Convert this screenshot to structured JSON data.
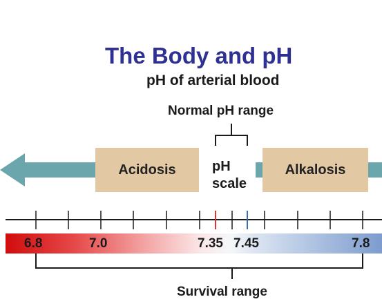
{
  "title": "The Body and pH",
  "subtitle": "pH of arterial blood",
  "normal_range": {
    "label": "Normal pH range",
    "low": "7.35",
    "high": "7.45"
  },
  "regions": {
    "acidosis": "Acidosis",
    "alkalosis": "Alkalosis"
  },
  "ph_scale": {
    "line1": "pH",
    "line2": "scale"
  },
  "scale": {
    "labels": [
      "6.8",
      "7.0",
      "7.35",
      "7.45",
      "7.8"
    ]
  },
  "survival_range": {
    "label": "Survival range"
  },
  "colors": {
    "title": "#2e3192",
    "arrow": "#6aa6ac",
    "box": "#e2c9a4",
    "acid_end": "#d10c0c",
    "alkaline_end": "#7d9ccd",
    "normal_low_tick": "#e23030",
    "normal_high_tick": "#3c6db4"
  }
}
